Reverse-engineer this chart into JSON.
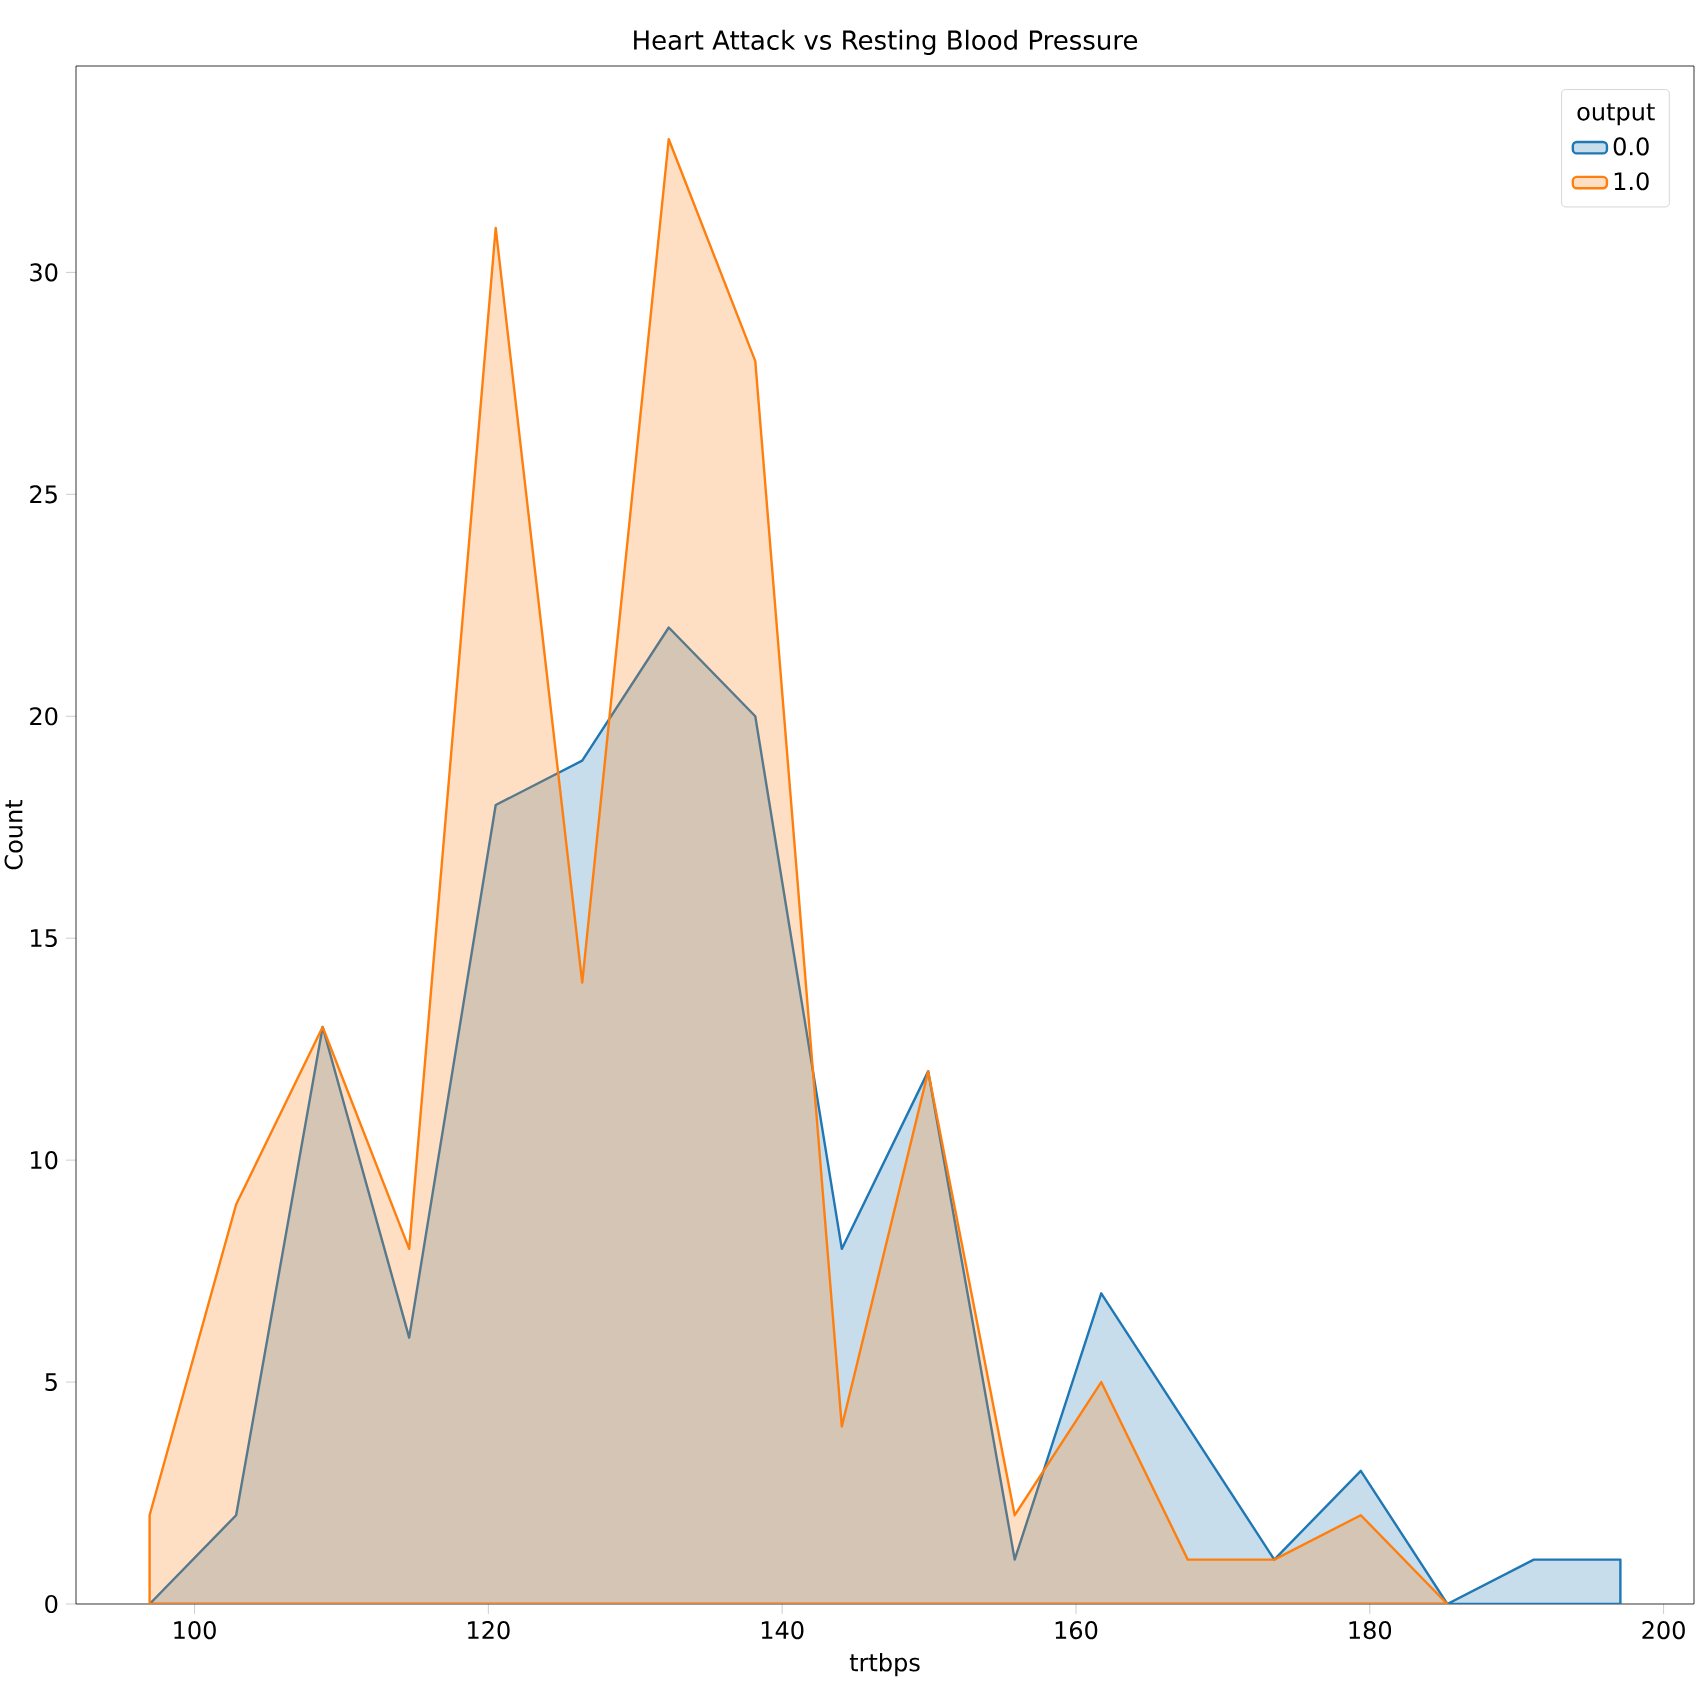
{
  "chart_data": {
    "type": "area",
    "title": "Heart Attack vs Resting Blood Pressure",
    "xlabel": "trtbps",
    "ylabel": "Count",
    "legend_title": "output",
    "legend": "top right",
    "grid": false,
    "xlim": [
      91.93,
      202.07
    ],
    "ylim": [
      0,
      34.65
    ],
    "xticks": [
      100,
      120,
      140,
      160,
      180,
      200
    ],
    "yticks": [
      0,
      5,
      10,
      15,
      20,
      25,
      30
    ],
    "series": [
      {
        "name": "0.0",
        "color": "#1f77b4",
        "x": [
          96.94,
          102.83,
          108.72,
          114.61,
          120.5,
          126.39,
          132.28,
          138.17,
          144.06,
          149.94,
          155.83,
          161.72,
          167.61,
          173.5,
          179.39,
          185.28,
          191.17,
          197.06
        ],
        "values": [
          0,
          2,
          13,
          6,
          18,
          19,
          22,
          20,
          8,
          12,
          1,
          7,
          4,
          1,
          3,
          0,
          1,
          1
        ]
      },
      {
        "name": "1.0",
        "color": "#ff7f0e",
        "x": [
          96.94,
          102.83,
          108.72,
          114.61,
          120.5,
          126.39,
          132.28,
          138.17,
          144.06,
          149.94,
          155.83,
          161.72,
          167.61,
          173.5,
          179.39,
          185.28
        ],
        "values": [
          2,
          9,
          13,
          8,
          31,
          14,
          33,
          28,
          4,
          12,
          2,
          5,
          1,
          1,
          2,
          0
        ]
      }
    ]
  }
}
